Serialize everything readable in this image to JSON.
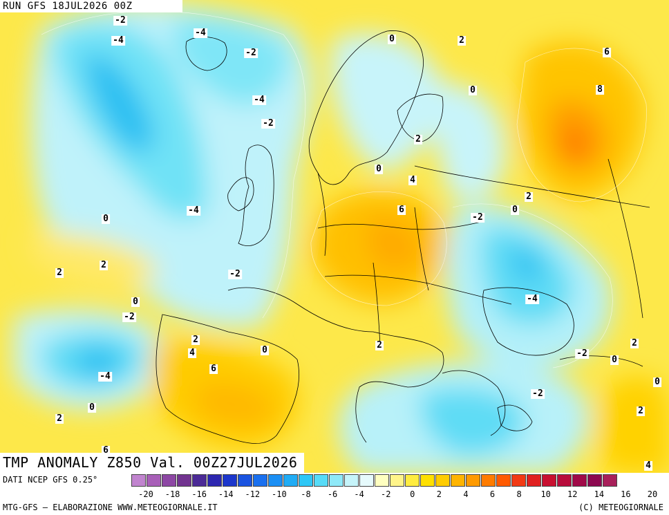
{
  "map": {
    "run": "RUN GFS 18JUL2026 00Z",
    "title": "TMP ANOMALY Z850 Val. 00Z27JUL2026",
    "contour_labels": [
      "-2",
      "-4",
      "-4",
      "-2",
      "-4",
      "-2",
      "0",
      "2",
      "6",
      "8",
      "0",
      "2",
      "0",
      "4",
      "6",
      "2",
      "-2",
      "-4",
      "0",
      "2",
      "2",
      "0",
      "-2",
      "-2",
      "-4",
      "2",
      "4",
      "6",
      "0",
      "2",
      "-4",
      "0",
      "2",
      "-2",
      "0",
      "-2",
      "2",
      "0",
      "0",
      "2",
      "6",
      "4"
    ]
  },
  "legend": {
    "source": "DATI NCEP GFS 0.25°",
    "ticks": [
      "-20",
      "-18",
      "-16",
      "-14",
      "-12",
      "-10",
      "-8",
      "-6",
      "-4",
      "-2",
      "0",
      "2",
      "4",
      "6",
      "8",
      "10",
      "12",
      "14",
      "16",
      "20"
    ],
    "colors": [
      "#c184cf",
      "#a85fb8",
      "#8d47a4",
      "#723490",
      "#4b2a96",
      "#2d27b0",
      "#1c37cc",
      "#1a53e0",
      "#1a70ef",
      "#1b8ff4",
      "#20acf5",
      "#2ec7f6",
      "#57dbf7",
      "#8fe9f8",
      "#c6f4fa",
      "#e6fafc",
      "#ffffc0",
      "#fff48a",
      "#ffec40",
      "#ffe000",
      "#ffcc00",
      "#ffb400",
      "#ff9a00",
      "#ff7c00",
      "#ff5a00",
      "#f23a14",
      "#e02020",
      "#c81030",
      "#b80c3c",
      "#a00a48",
      "#8c0850",
      "#a8205a"
    ]
  },
  "footer": {
    "credit_left": "MTG-GFS — ELABORAZIONE WWW.METEOGIORNALE.IT",
    "credit_right": "(C) METEOGIORNALE"
  }
}
